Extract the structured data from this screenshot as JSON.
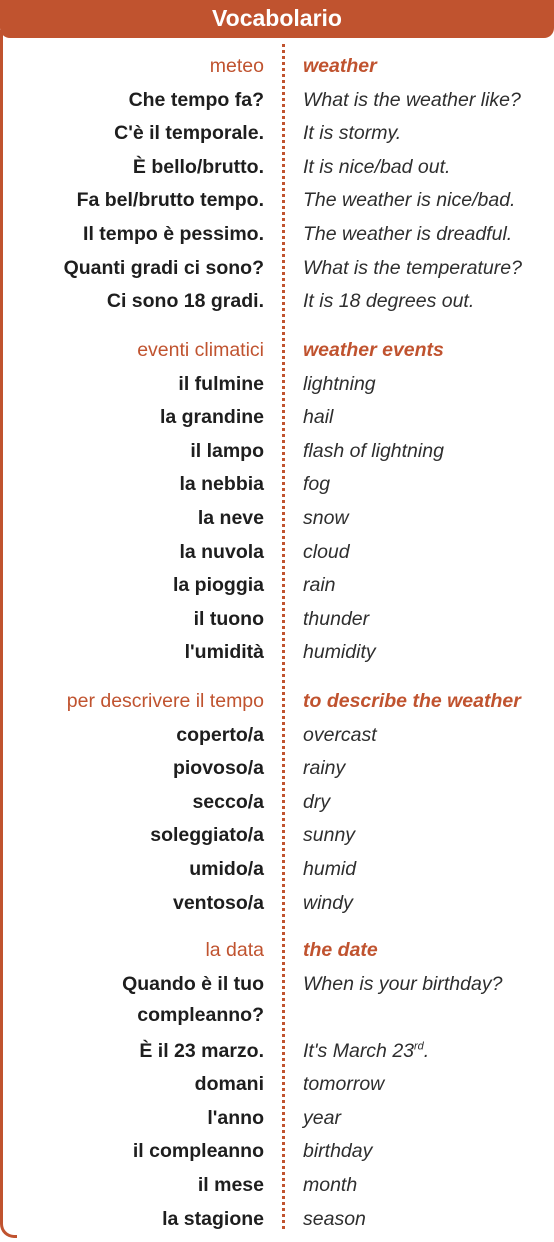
{
  "title": "Vocabolario",
  "sections": [
    {
      "heading_it": "meteo",
      "heading_en": "weather",
      "rows": [
        {
          "it": "Che tempo fa?",
          "en": "What is the weather like?"
        },
        {
          "it": "C'è il temporale.",
          "en": "It is stormy."
        },
        {
          "it": "È bello/brutto.",
          "en": "It is nice/bad out."
        },
        {
          "it": "Fa bel/brutto tempo.",
          "en": "The weather is nice/bad."
        },
        {
          "it": "Il tempo è pessimo.",
          "en": "The weather is dreadful."
        },
        {
          "it": "Quanti gradi ci sono?",
          "en": "What is the temperature?"
        },
        {
          "it": "Ci sono 18 gradi.",
          "en": "It is 18 degrees out."
        }
      ]
    },
    {
      "heading_it": "eventi climatici",
      "heading_en": "weather events",
      "rows": [
        {
          "it": "il fulmine",
          "en": "lightning"
        },
        {
          "it": "la grandine",
          "en": "hail"
        },
        {
          "it": "il lampo",
          "en": "flash of lightning"
        },
        {
          "it": "la nebbia",
          "en": "fog"
        },
        {
          "it": "la neve",
          "en": "snow"
        },
        {
          "it": "la nuvola",
          "en": "cloud"
        },
        {
          "it": "la pioggia",
          "en": "rain"
        },
        {
          "it": "il tuono",
          "en": "thunder"
        },
        {
          "it": "l'umidità",
          "en": "humidity"
        }
      ]
    },
    {
      "heading_it": "per descrivere il tempo",
      "heading_en": "to describe the weather",
      "rows": [
        {
          "it": "coperto/a",
          "en": "overcast"
        },
        {
          "it": "piovoso/a",
          "en": "rainy"
        },
        {
          "it": "secco/a",
          "en": "dry"
        },
        {
          "it": "soleggiato/a",
          "en": "sunny"
        },
        {
          "it": "umido/a",
          "en": "humid"
        },
        {
          "it": "ventoso/a",
          "en": "windy"
        }
      ]
    },
    {
      "heading_it": "la data",
      "heading_en": "the date",
      "rows": [
        {
          "it": "Quando è il tuo compleanno?",
          "en": "When is your birthday?"
        },
        {
          "it": "È il 23 marzo.",
          "en": "It's March 23",
          "en_sup": "rd",
          "en_after": "."
        },
        {
          "it": "domani",
          "en": "tomorrow"
        },
        {
          "it": "l'anno",
          "en": "year"
        },
        {
          "it": "il compleanno",
          "en": "birthday"
        },
        {
          "it": "il mese",
          "en": "month"
        },
        {
          "it": "la stagione",
          "en": "season"
        }
      ]
    }
  ],
  "colors": {
    "accent": "#c0532f",
    "text": "#1e1e1e"
  }
}
